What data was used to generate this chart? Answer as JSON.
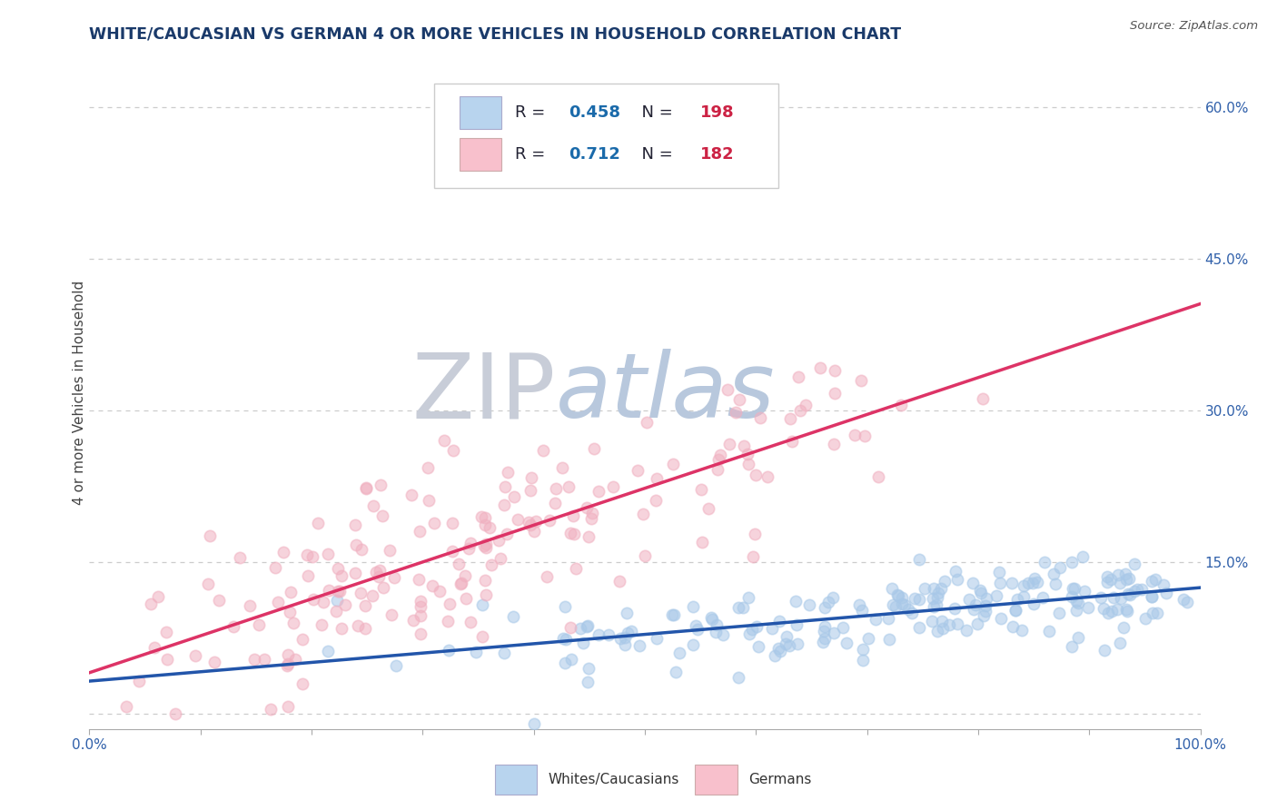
{
  "title": "WHITE/CAUCASIAN VS GERMAN 4 OR MORE VEHICLES IN HOUSEHOLD CORRELATION CHART",
  "source": "Source: ZipAtlas.com",
  "ylabel": "4 or more Vehicles in Household",
  "xlim": [
    0.0,
    1.0
  ],
  "ylim": [
    -0.015,
    0.65
  ],
  "xticks": [
    0.0,
    0.1,
    0.2,
    0.3,
    0.4,
    0.5,
    0.6,
    0.7,
    0.8,
    0.9,
    1.0
  ],
  "xtick_labels": [
    "0.0%",
    "",
    "",
    "",
    "",
    "",
    "",
    "",
    "",
    "",
    "100.0%"
  ],
  "ytick_positions": [
    0.0,
    0.15,
    0.3,
    0.45,
    0.6
  ],
  "ytick_labels": [
    "",
    "15.0%",
    "30.0%",
    "45.0%",
    "60.0%"
  ],
  "blue_scatter_color": "#a8c8e8",
  "blue_line_color": "#2255aa",
  "pink_scatter_color": "#f0b0c0",
  "pink_line_color": "#dd3366",
  "legend_blue_face": "#b8d4ee",
  "legend_pink_face": "#f8c0cc",
  "R_blue": 0.458,
  "N_blue": 198,
  "R_pink": 0.712,
  "N_pink": 182,
  "legend_labels": [
    "Whites/Caucasians",
    "Germans"
  ],
  "title_color": "#1a3a6a",
  "axis_label_color": "#444444",
  "tick_color": "#3060aa",
  "R_label_color": "#222244",
  "R_value_color": "#1a6aaa",
  "N_label_color": "#222244",
  "N_value_color": "#cc2244",
  "source_color": "#555555",
  "grid_color": "#cccccc",
  "watermark_zip_color": "#c8cdd8",
  "watermark_atlas_color": "#b8c8dd"
}
